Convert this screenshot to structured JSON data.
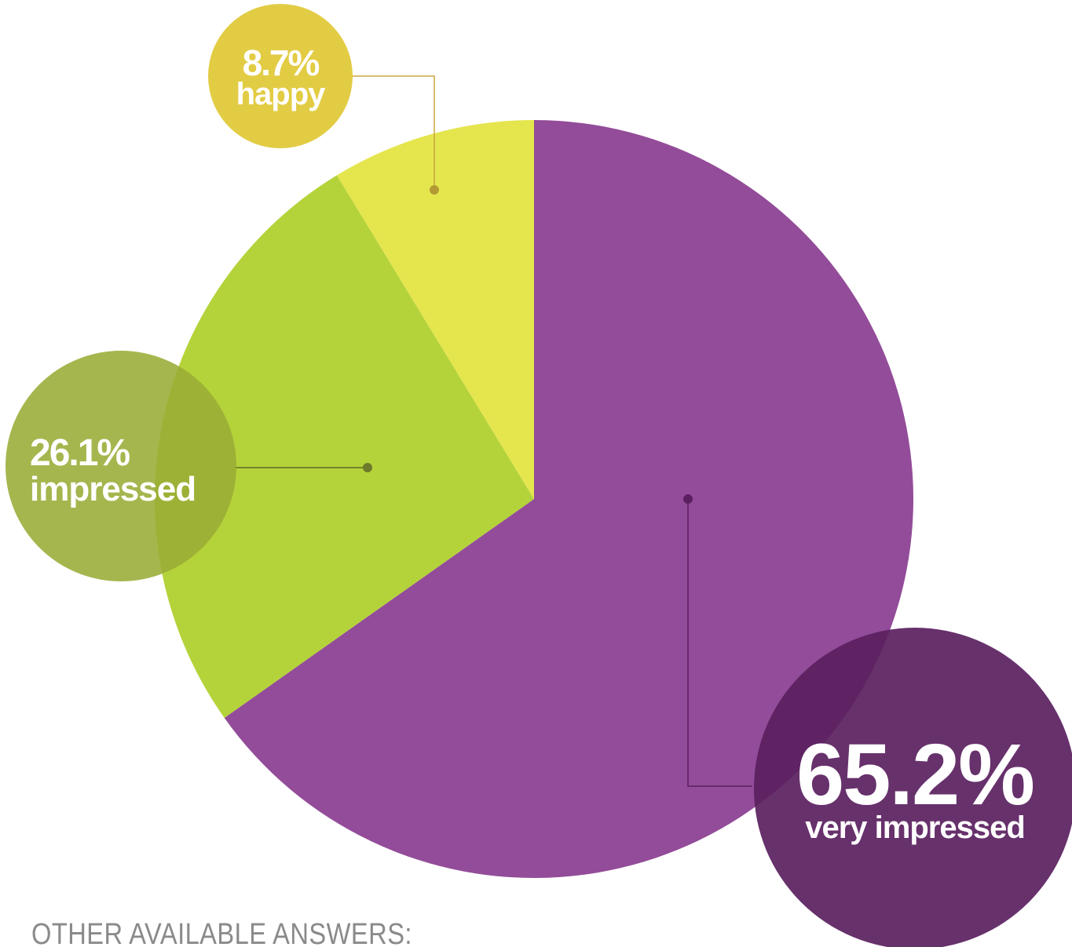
{
  "chart_data": {
    "type": "pie",
    "title": "",
    "start_angle_deg": 0,
    "direction": "clockwise",
    "slices": [
      {
        "key": "very_impressed",
        "value": 65.2,
        "pct_label": "65.2%",
        "label": "very impressed",
        "color": "#934c99",
        "bubble_color": "#5a1f5f",
        "leader_color": "#5a1f5f",
        "dot_color": "#5a1f5f"
      },
      {
        "key": "impressed",
        "value": 26.1,
        "pct_label": "26.1%",
        "label": "impressed",
        "color": "#b4d33a",
        "bubble_color": "#9aac35",
        "leader_color": "#5f6b24",
        "dot_color": "#6e7a2b"
      },
      {
        "key": "happy",
        "value": 8.7,
        "pct_label": "8.7%",
        "label": "happy",
        "color": "#e5e54e",
        "bubble_color": "#e0c93a",
        "leader_color": "#c8a83a",
        "dot_color": "#b39a35"
      }
    ]
  },
  "footer": {
    "text": "OTHER AVAILABLE ANSWERS:"
  }
}
